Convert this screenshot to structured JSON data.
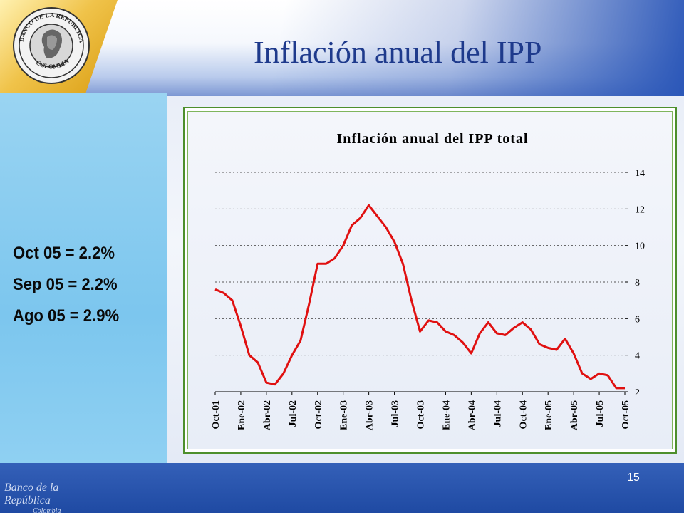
{
  "slide": {
    "title": "Inflación anual del IPP",
    "page_number": "15",
    "stats": [
      "Oct 05 = 2.2%",
      "Sep 05 = 2.2%",
      "Ago 05 = 2.9%"
    ],
    "logo_text": "BANCO DE LA REPUBLICA · COLOMBIA",
    "footer_logo_text": "Banco de la República",
    "footer_logo_sub": "Colombia",
    "colors": {
      "line": "#e01010",
      "accent": "#1e3a8c",
      "frame": "#4d8f2c"
    }
  },
  "chart_data": {
    "type": "line",
    "title": "Inflación anual del IPP total",
    "xlabel": "",
    "ylabel": "",
    "ylim": [
      2,
      14
    ],
    "yticks": [
      2,
      4,
      6,
      8,
      10,
      12,
      14
    ],
    "y_axis_side": "right",
    "grid": "horizontal dashed",
    "x_tick_labels": [
      "Oct-01",
      "Ene-02",
      "Abr-02",
      "Jul-02",
      "Oct-02",
      "Ene-03",
      "Abr-03",
      "Jul-03",
      "Oct-03",
      "Ene-04",
      "Abr-04",
      "Jul-04",
      "Oct-04",
      "Ene-05",
      "Abr-05",
      "Jul-05",
      "Oct-05"
    ],
    "series": [
      {
        "values": [
          7.6,
          7.4,
          7.0,
          5.6,
          4.0,
          3.6,
          2.5,
          2.4,
          3.0,
          4.0,
          4.8,
          6.8,
          9.0,
          9.0,
          9.3,
          10.0,
          11.1,
          11.5,
          12.2,
          11.6,
          11.0,
          10.2,
          9.0,
          7.0,
          5.3,
          5.9,
          5.8,
          5.3,
          5.1,
          4.7,
          4.1,
          5.2,
          5.8,
          5.2,
          5.1,
          5.5,
          5.8,
          5.4,
          4.6,
          4.4,
          4.3,
          4.9,
          4.1,
          3.0,
          2.7,
          3.0,
          2.9,
          2.2,
          2.2
        ]
      }
    ]
  }
}
